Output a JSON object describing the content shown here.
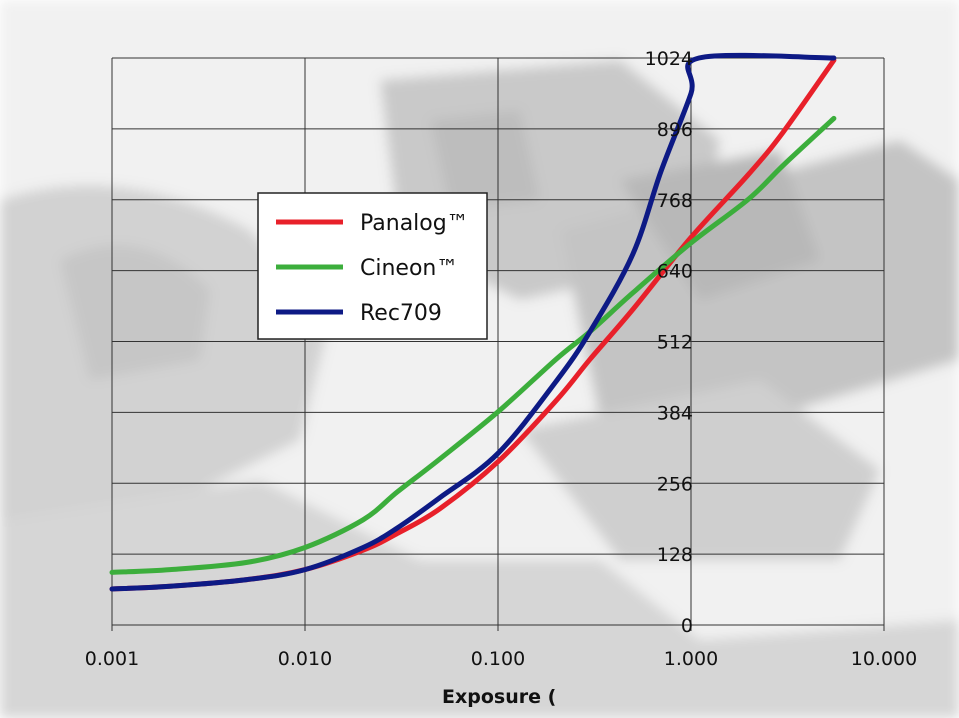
{
  "chart_data": {
    "type": "line",
    "xlabel": "Exposure (",
    "ylabel": "",
    "x_scale": "log",
    "xlim": [
      0.001,
      10
    ],
    "ylim": [
      0,
      1024
    ],
    "x_ticks": [
      "0.001",
      "0.010",
      "0.100",
      "1.000",
      "10.000"
    ],
    "y_ticks": [
      "0",
      "128",
      "256",
      "384",
      "512",
      "640",
      "768",
      "896",
      "1024"
    ],
    "grid": true,
    "legend_position": "upper-left",
    "series": [
      {
        "name": "Panalog™",
        "color": "#e8202a",
        "x": [
          0.001,
          0.002,
          0.005,
          0.01,
          0.02,
          0.03,
          0.05,
          0.1,
          0.2,
          0.3,
          0.5,
          1,
          2,
          3,
          5.5
        ],
        "y": [
          65,
          70,
          82,
          100,
          135,
          165,
          210,
          295,
          405,
          480,
          570,
          700,
          815,
          890,
          1020
        ]
      },
      {
        "name": "Cineon™",
        "color": "#3cae3c",
        "x": [
          0.001,
          0.002,
          0.005,
          0.01,
          0.02,
          0.03,
          0.05,
          0.1,
          0.2,
          0.3,
          0.5,
          1,
          2,
          3,
          5.5
        ],
        "y": [
          95,
          100,
          113,
          140,
          190,
          240,
          300,
          385,
          480,
          530,
          600,
          690,
          770,
          830,
          915
        ]
      },
      {
        "name": "Rec709",
        "color": "#0d1a85",
        "x": [
          0.001,
          0.002,
          0.005,
          0.01,
          0.02,
          0.03,
          0.05,
          0.1,
          0.2,
          0.3,
          0.5,
          0.7,
          1.0,
          1.1,
          5.5
        ],
        "y": [
          65,
          70,
          82,
          100,
          140,
          175,
          230,
          310,
          440,
          530,
          670,
          820,
          960,
          1024,
          1024
        ]
      }
    ]
  }
}
